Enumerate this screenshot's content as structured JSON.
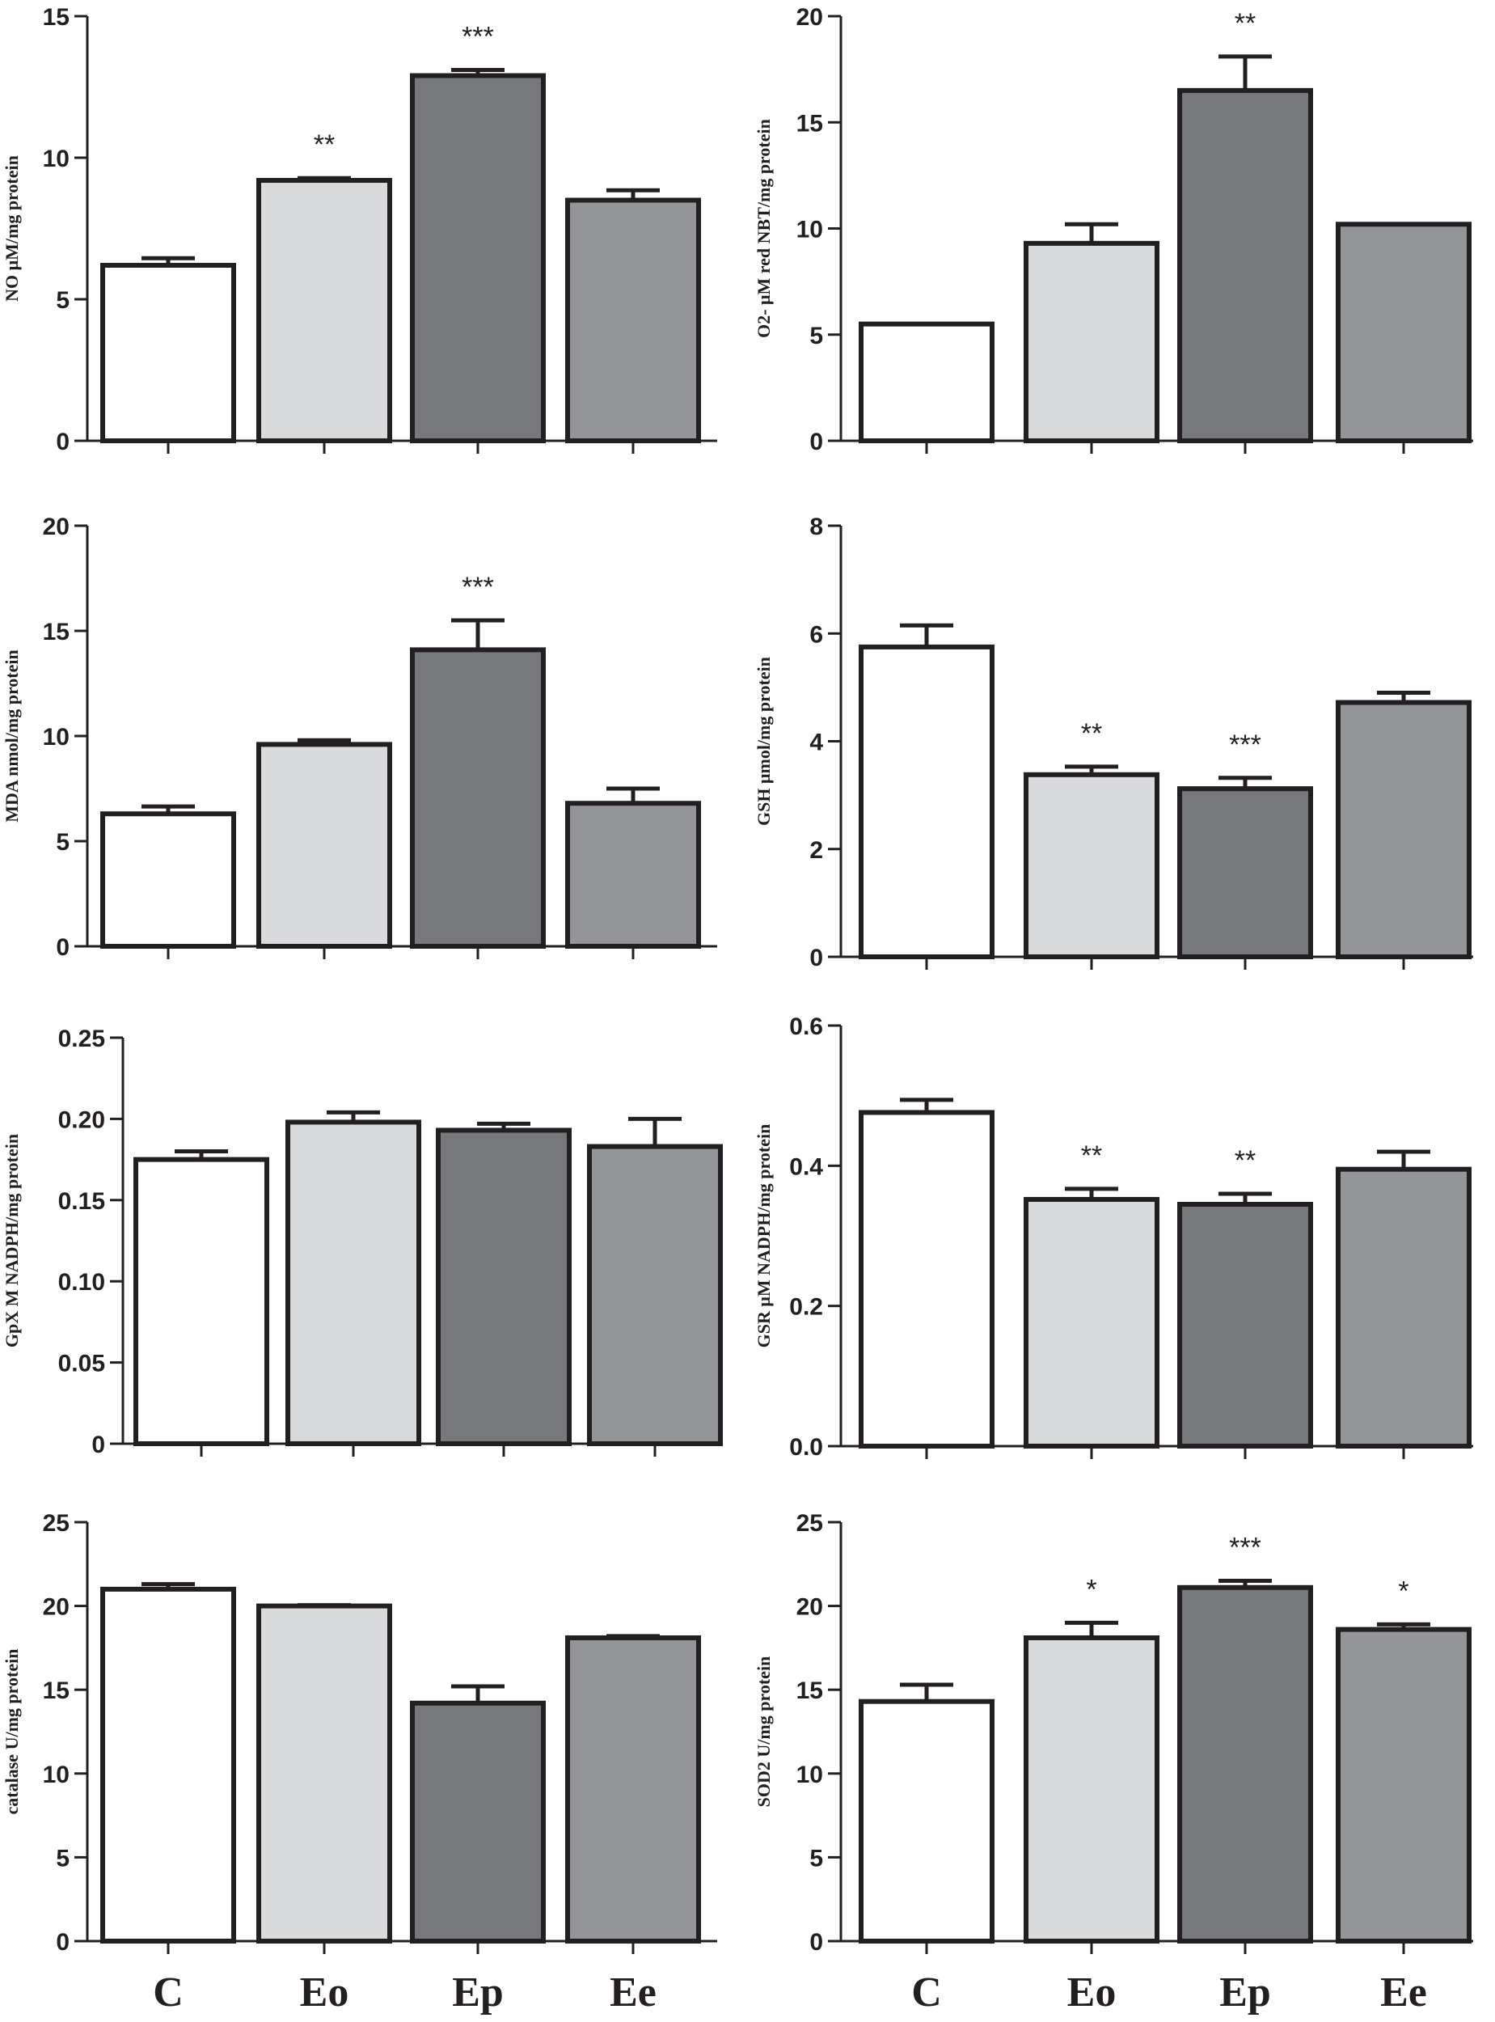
{
  "categories": [
    "C",
    "Eo",
    "Ep",
    "Ee"
  ],
  "colors": {
    "axis": "#231f20",
    "bar_fills": [
      "#ffffff",
      "#d9dadb",
      "#77787b",
      "#939598"
    ]
  },
  "chart_data": [
    {
      "type": "bar",
      "title": "",
      "xlabel": "",
      "ylabel": "NO μM/mg protein",
      "ylim": [
        0,
        15
      ],
      "yticks": [
        "0",
        "5",
        "10",
        "15"
      ],
      "categories": [
        "C",
        "Eo",
        "Ep",
        "Ee"
      ],
      "values": [
        6.2,
        9.2,
        12.9,
        8.5
      ],
      "errors": [
        0.25,
        0.08,
        0.2,
        0.35
      ],
      "significance": [
        "",
        "**",
        "***",
        ""
      ]
    },
    {
      "type": "bar",
      "title": "",
      "xlabel": "",
      "ylabel": "O2- μM red NBT/mg protein",
      "ylim": [
        0,
        20
      ],
      "yticks": [
        "0",
        "5",
        "10",
        "15",
        "20"
      ],
      "categories": [
        "C",
        "Eo",
        "Ep",
        "Ee"
      ],
      "values": [
        5.5,
        9.3,
        16.5,
        10.2
      ],
      "errors": [
        0.0,
        0.9,
        1.6,
        0.0
      ],
      "significance": [
        "",
        "",
        "**",
        ""
      ]
    },
    {
      "type": "bar",
      "title": "",
      "xlabel": "",
      "ylabel": "MDA nmol/mg  protein",
      "ylim": [
        0,
        20
      ],
      "yticks": [
        "0",
        "5",
        "10",
        "15",
        "20"
      ],
      "categories": [
        "C",
        "Eo",
        "Ep",
        "Ee"
      ],
      "values": [
        6.3,
        9.6,
        14.1,
        6.8
      ],
      "errors": [
        0.35,
        0.2,
        1.4,
        0.7
      ],
      "significance": [
        "",
        "",
        "***",
        ""
      ]
    },
    {
      "type": "bar",
      "title": "",
      "xlabel": "",
      "ylabel": "GSH μmol/mg protein",
      "ylim": [
        0,
        8
      ],
      "yticks": [
        "0",
        "2",
        "4",
        "6",
        "8"
      ],
      "categories": [
        "C",
        "Eo",
        "Ep",
        "Ee"
      ],
      "values": [
        5.75,
        3.38,
        3.12,
        4.72
      ],
      "errors": [
        0.4,
        0.15,
        0.2,
        0.18
      ],
      "significance": [
        "",
        "**",
        "***",
        ""
      ]
    },
    {
      "type": "bar",
      "title": "",
      "xlabel": "",
      "ylabel": "GpX M NADPH/mg protein",
      "ylim": [
        0,
        0.25
      ],
      "yticks": [
        "0",
        "0.05",
        "0.10",
        "0.15",
        "0.20",
        "0.25"
      ],
      "categories": [
        "C",
        "Eo",
        "Ep",
        "Ee"
      ],
      "values": [
        0.175,
        0.198,
        0.193,
        0.183
      ],
      "errors": [
        0.005,
        0.006,
        0.004,
        0.017
      ],
      "significance": [
        "",
        "",
        "",
        ""
      ]
    },
    {
      "type": "bar",
      "title": "",
      "xlabel": "",
      "ylabel": "GSR μM NADPH/mg protein",
      "ylim": [
        0,
        0.6
      ],
      "yticks": [
        "0.0",
        "0.2",
        "0.4",
        "0.6"
      ],
      "categories": [
        "C",
        "Eo",
        "Ep",
        "Ee"
      ],
      "values": [
        0.476,
        0.352,
        0.345,
        0.395
      ],
      "errors": [
        0.018,
        0.015,
        0.015,
        0.025
      ],
      "significance": [
        "",
        "**",
        "**",
        ""
      ]
    },
    {
      "type": "bar",
      "title": "",
      "xlabel": "",
      "ylabel": "catalase U/mg protein",
      "ylim": [
        0,
        25
      ],
      "yticks": [
        "0",
        "5",
        "10",
        "15",
        "20",
        "25"
      ],
      "categories": [
        "C",
        "Eo",
        "Ep",
        "Ee"
      ],
      "values": [
        21.0,
        20.0,
        14.2,
        18.1
      ],
      "errors": [
        0.3,
        0.05,
        1.0,
        0.1
      ],
      "significance": [
        "",
        "",
        "",
        ""
      ]
    },
    {
      "type": "bar",
      "title": "",
      "xlabel": "",
      "ylabel": "SOD2 U/mg protein",
      "ylim": [
        0,
        25
      ],
      "yticks": [
        "0",
        "5",
        "10",
        "15",
        "20",
        "25"
      ],
      "categories": [
        "C",
        "Eo",
        "Ep",
        "Ee"
      ],
      "values": [
        14.3,
        18.1,
        21.1,
        18.6
      ],
      "errors": [
        1.0,
        0.9,
        0.4,
        0.3
      ],
      "significance": [
        "",
        "*",
        "***",
        "*"
      ]
    }
  ]
}
